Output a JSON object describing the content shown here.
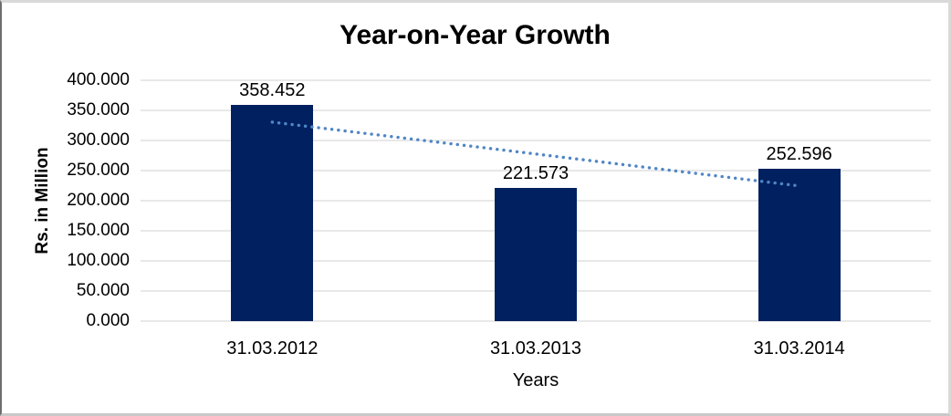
{
  "chart_data": {
    "type": "bar",
    "title": "Year-on-Year Growth",
    "xlabel": "Years",
    "ylabel": "Rs. in Million",
    "categories": [
      "31.03.2012",
      "31.03.2013",
      "31.03.2014"
    ],
    "values": [
      358.452,
      221.573,
      252.596
    ],
    "data_labels": [
      "358.452",
      "221.573",
      "252.596"
    ],
    "ylim": [
      0,
      400
    ],
    "ytick_step": 50,
    "ytick_labels": [
      "0.000",
      "50.000",
      "100.000",
      "150.000",
      "200.000",
      "250.000",
      "300.000",
      "350.000",
      "400.000"
    ],
    "grid": true,
    "legend": "none",
    "trendline": {
      "type": "linear",
      "style": "dotted",
      "start_value": 330.5,
      "end_value": 224.6
    }
  },
  "colors": {
    "bar": "#002060",
    "trendline": "#4F86C6",
    "gridline": "#D9D9D9",
    "text": "#000000",
    "frame_border": "#D9D9D9",
    "frame_border_bottom": "#C9C9C9",
    "frame_border_left": "#6E6E6E",
    "background": "#FFFFFF"
  }
}
